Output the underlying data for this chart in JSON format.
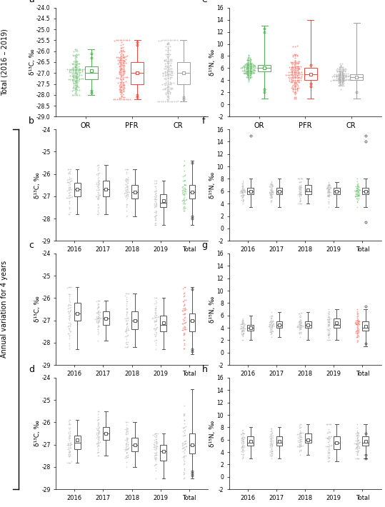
{
  "panel_a": {
    "categories": [
      "OR",
      "PFR",
      "CR"
    ],
    "colors": [
      "#4CAF50",
      "#F44336",
      "#9E9E9E"
    ],
    "box_stats": [
      {
        "median": -27.0,
        "q1": -27.3,
        "q3": -26.7,
        "whislo": -28.0,
        "whishi": -25.9,
        "mean": -26.9,
        "fliers_lo": [
          -27.8,
          -27.9
        ],
        "fliers_hi": [
          -26.3,
          -26.1
        ]
      },
      {
        "median": -27.0,
        "q1": -27.5,
        "q3": -26.5,
        "whislo": -28.2,
        "whishi": -25.5,
        "mean": -27.0,
        "fliers_lo": [
          -28.1,
          -28.0
        ],
        "fliers_hi": [
          -25.6,
          -25.7
        ]
      },
      {
        "median": -27.0,
        "q1": -27.5,
        "q3": -26.5,
        "whislo": -28.3,
        "whishi": -25.5,
        "mean": -27.0,
        "fliers_lo": [
          -28.2,
          -28.1
        ],
        "fliers_hi": []
      }
    ],
    "ylim": [
      -29.0,
      -24.0
    ],
    "yticks": [
      -29.0,
      -28.5,
      -28.0,
      -27.5,
      -27.0,
      -26.5,
      -26.0,
      -25.5,
      -25.0,
      -24.5,
      -24.0
    ],
    "ylabel": "δ¹³C, ‰",
    "label": "a"
  },
  "panel_e": {
    "categories": [
      "OR",
      "PFR",
      "CR"
    ],
    "colors": [
      "#4CAF50",
      "#F44336",
      "#9E9E9E"
    ],
    "box_stats": [
      {
        "median": 6.0,
        "q1": 5.5,
        "q3": 6.5,
        "whislo": 1.0,
        "whishi": 13.0,
        "mean": 6.0,
        "fliers_lo": [
          2.0,
          2.5
        ],
        "fliers_hi": [
          12.0,
          12.5
        ]
      },
      {
        "median": 5.0,
        "q1": 4.0,
        "q3": 6.0,
        "whislo": 1.0,
        "whishi": 14.0,
        "mean": 5.0,
        "fliers_lo": [
          3.0,
          3.5
        ],
        "fliers_hi": [
          6.5
        ]
      },
      {
        "median": 4.5,
        "q1": 4.0,
        "q3": 5.0,
        "whislo": 1.0,
        "whishi": 13.5,
        "mean": 4.5,
        "fliers_lo": [
          2.0
        ],
        "fliers_hi": []
      }
    ],
    "ylim": [
      -2.0,
      16.0
    ],
    "yticks": [
      -2,
      0,
      2,
      4,
      6,
      8,
      10,
      12,
      14,
      16
    ],
    "ylabel": "δ¹⁵N, ‰",
    "label": "e"
  },
  "panels_bcd": {
    "years_labels": [
      "2016",
      "2017",
      "2018",
      "2019",
      "Total"
    ],
    "box_stats_b": [
      {
        "median": -26.7,
        "q1": -27.0,
        "q3": -26.4,
        "whislo": -27.8,
        "whishi": -25.8,
        "mean": -26.7,
        "fliers_lo": [],
        "fliers_hi": []
      },
      {
        "median": -26.7,
        "q1": -27.0,
        "q3": -26.3,
        "whislo": -27.8,
        "whishi": -25.6,
        "mean": -26.7,
        "fliers_lo": [],
        "fliers_hi": []
      },
      {
        "median": -26.8,
        "q1": -27.1,
        "q3": -26.5,
        "whislo": -27.9,
        "whishi": -25.8,
        "mean": -26.8,
        "fliers_lo": [],
        "fliers_hi": []
      },
      {
        "median": -27.3,
        "q1": -27.5,
        "q3": -26.9,
        "whislo": -28.3,
        "whishi": -26.3,
        "mean": -27.2,
        "fliers_lo": [],
        "fliers_hi": []
      },
      {
        "median": -26.8,
        "q1": -27.1,
        "q3": -26.5,
        "whislo": -28.3,
        "whishi": -25.4,
        "mean": -26.8,
        "fliers_lo": [
          -27.9,
          -28.0
        ],
        "fliers_hi": [
          -25.5
        ]
      }
    ],
    "box_stats_c": [
      {
        "median": -26.7,
        "q1": -27.0,
        "q3": -26.2,
        "whislo": -28.3,
        "whishi": -25.5,
        "mean": -26.7,
        "fliers_lo": [],
        "fliers_hi": []
      },
      {
        "median": -26.9,
        "q1": -27.2,
        "q3": -26.6,
        "whislo": -27.9,
        "whishi": -26.1,
        "mean": -26.9,
        "fliers_lo": [],
        "fliers_hi": []
      },
      {
        "median": -27.0,
        "q1": -27.4,
        "q3": -26.6,
        "whislo": -28.2,
        "whishi": -25.8,
        "mean": -27.0,
        "fliers_lo": [],
        "fliers_hi": []
      },
      {
        "median": -27.2,
        "q1": -27.5,
        "q3": -26.8,
        "whislo": -28.3,
        "whishi": -26.0,
        "mean": -27.1,
        "fliers_lo": [],
        "fliers_hi": []
      },
      {
        "median": -27.0,
        "q1": -27.5,
        "q3": -26.7,
        "whislo": -28.5,
        "whishi": -25.5,
        "mean": -27.0,
        "fliers_lo": [
          -28.4,
          -28.3
        ],
        "fliers_hi": [
          -25.6
        ]
      }
    ],
    "box_stats_d": [
      {
        "median": -26.9,
        "q1": -27.2,
        "q3": -26.6,
        "whislo": -27.8,
        "whishi": -25.9,
        "mean": -26.8,
        "fliers_lo": [],
        "fliers_hi": []
      },
      {
        "median": -26.5,
        "q1": -26.8,
        "q3": -26.2,
        "whislo": -27.5,
        "whishi": -25.5,
        "mean": -26.5,
        "fliers_lo": [],
        "fliers_hi": []
      },
      {
        "median": -27.0,
        "q1": -27.3,
        "q3": -26.7,
        "whislo": -28.0,
        "whishi": -26.0,
        "mean": -27.0,
        "fliers_lo": [],
        "fliers_hi": []
      },
      {
        "median": -27.3,
        "q1": -27.7,
        "q3": -27.0,
        "whislo": -28.5,
        "whishi": -26.5,
        "mean": -27.3,
        "fliers_lo": [],
        "fliers_hi": []
      },
      {
        "median": -27.0,
        "q1": -27.4,
        "q3": -26.5,
        "whislo": -28.5,
        "whishi": -24.5,
        "mean": -27.0,
        "fliers_lo": [
          -28.2,
          -28.3,
          -28.4
        ],
        "fliers_hi": []
      }
    ],
    "ylim": [
      -29.0,
      -24.0
    ],
    "yticks": [
      -29.0,
      -28.0,
      -27.0,
      -26.0,
      -25.0,
      -24.0
    ],
    "ylabel": "δ¹³C, ‰"
  },
  "panels_fgh": {
    "years_labels": [
      "2016",
      "2017",
      "2018",
      "2019",
      "Total"
    ],
    "colors_f": [
      "#AAAAAA",
      "#AAAAAA",
      "#AAAAAA",
      "#AAAAAA",
      "#4CAF50"
    ],
    "colors_g": [
      "#AAAAAA",
      "#AAAAAA",
      "#AAAAAA",
      "#AAAAAA",
      "#F44336"
    ],
    "colors_h": [
      "#AAAAAA",
      "#AAAAAA",
      "#AAAAAA",
      "#AAAAAA",
      "#9E9E9E"
    ],
    "box_stats_f": [
      {
        "median": 6.0,
        "q1": 5.5,
        "q3": 6.5,
        "whislo": 3.5,
        "whishi": 8.0,
        "mean": 6.0,
        "fliers_lo": [],
        "fliers_hi": [
          15.0
        ]
      },
      {
        "median": 6.0,
        "q1": 5.5,
        "q3": 6.5,
        "whislo": 3.5,
        "whishi": 8.0,
        "mean": 6.0,
        "fliers_lo": [],
        "fliers_hi": []
      },
      {
        "median": 6.0,
        "q1": 5.5,
        "q3": 7.0,
        "whislo": 4.0,
        "whishi": 8.0,
        "mean": 6.2,
        "fliers_lo": [],
        "fliers_hi": []
      },
      {
        "median": 6.0,
        "q1": 5.5,
        "q3": 6.5,
        "whislo": 3.5,
        "whishi": 7.5,
        "mean": 6.0,
        "fliers_lo": [],
        "fliers_hi": []
      },
      {
        "median": 6.0,
        "q1": 5.5,
        "q3": 6.5,
        "whislo": 3.5,
        "whishi": 8.0,
        "mean": 6.0,
        "fliers_lo": [
          1.0
        ],
        "fliers_hi": [
          15.0,
          14.0
        ]
      }
    ],
    "box_stats_g": [
      {
        "median": 4.0,
        "q1": 3.5,
        "q3": 4.5,
        "whislo": 2.0,
        "whishi": 6.0,
        "mean": 4.0,
        "fliers_lo": [],
        "fliers_hi": []
      },
      {
        "median": 4.5,
        "q1": 4.0,
        "q3": 5.0,
        "whislo": 2.5,
        "whishi": 6.5,
        "mean": 4.5,
        "fliers_lo": [],
        "fliers_hi": []
      },
      {
        "median": 4.5,
        "q1": 4.0,
        "q3": 5.0,
        "whislo": 2.0,
        "whishi": 6.5,
        "mean": 4.5,
        "fliers_lo": [],
        "fliers_hi": []
      },
      {
        "median": 4.5,
        "q1": 4.0,
        "q3": 5.5,
        "whislo": 2.0,
        "whishi": 7.0,
        "mean": 4.8,
        "fliers_lo": [],
        "fliers_hi": []
      },
      {
        "median": 4.0,
        "q1": 3.5,
        "q3": 5.0,
        "whislo": 1.0,
        "whishi": 7.0,
        "mean": 4.2,
        "fliers_lo": [
          1.5
        ],
        "fliers_hi": [
          7.5
        ]
      }
    ],
    "box_stats_h": [
      {
        "median": 5.5,
        "q1": 5.0,
        "q3": 6.5,
        "whislo": 3.0,
        "whishi": 8.0,
        "mean": 5.7,
        "fliers_lo": [],
        "fliers_hi": []
      },
      {
        "median": 5.5,
        "q1": 5.0,
        "q3": 6.5,
        "whislo": 3.0,
        "whishi": 8.0,
        "mean": 5.7,
        "fliers_lo": [],
        "fliers_hi": []
      },
      {
        "median": 6.0,
        "q1": 5.5,
        "q3": 7.0,
        "whislo": 3.5,
        "whishi": 8.5,
        "mean": 6.0,
        "fliers_lo": [],
        "fliers_hi": []
      },
      {
        "median": 5.5,
        "q1": 4.5,
        "q3": 6.5,
        "whislo": 2.5,
        "whishi": 8.5,
        "mean": 5.5,
        "fliers_lo": [],
        "fliers_hi": []
      },
      {
        "median": 5.5,
        "q1": 5.0,
        "q3": 6.5,
        "whislo": 3.0,
        "whishi": 8.5,
        "mean": 5.7,
        "fliers_lo": [
          3.5,
          3.0
        ],
        "fliers_hi": [
          7.0
        ]
      }
    ],
    "ylim": [
      -2.0,
      16.0
    ],
    "yticks": [
      -2,
      0,
      2,
      4,
      6,
      8,
      10,
      12,
      14,
      16
    ],
    "ylabel": "δ¹⁵N, ‰"
  },
  "fig_bg": "#FFFFFF",
  "left_label": "Total (2016 – 2019)",
  "left_label2": "Annual variation for 4 years"
}
